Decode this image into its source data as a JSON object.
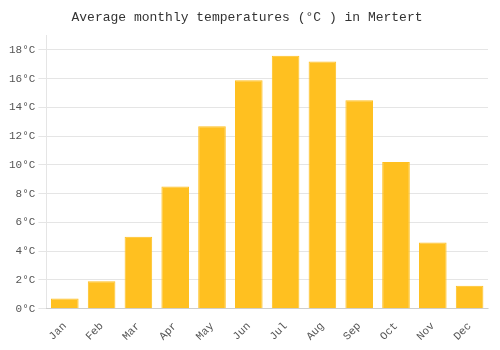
{
  "chart_data": {
    "type": "bar",
    "title": "Average monthly temperatures (°C ) in Mertert",
    "categories": [
      "Jan",
      "Feb",
      "Mar",
      "Apr",
      "May",
      "Jun",
      "Jul",
      "Aug",
      "Sep",
      "Oct",
      "Nov",
      "Dec"
    ],
    "values": [
      0.7,
      1.9,
      5.0,
      8.5,
      12.7,
      15.9,
      17.6,
      17.2,
      14.5,
      10.2,
      4.6,
      1.6
    ],
    "color": "#FFC020",
    "ylim": [
      0,
      19.0
    ],
    "yticks": [
      {
        "value": 0,
        "label": "0°C"
      },
      {
        "value": 2,
        "label": "2°C"
      },
      {
        "value": 4,
        "label": "4°C"
      },
      {
        "value": 6,
        "label": "6°C"
      },
      {
        "value": 8,
        "label": "8°C"
      },
      {
        "value": 10,
        "label": "10°C"
      },
      {
        "value": 12,
        "label": "12°C"
      },
      {
        "value": 14,
        "label": "14°C"
      },
      {
        "value": 16,
        "label": "16°C"
      },
      {
        "value": 18,
        "label": "18°C"
      }
    ],
    "grid": true
  }
}
